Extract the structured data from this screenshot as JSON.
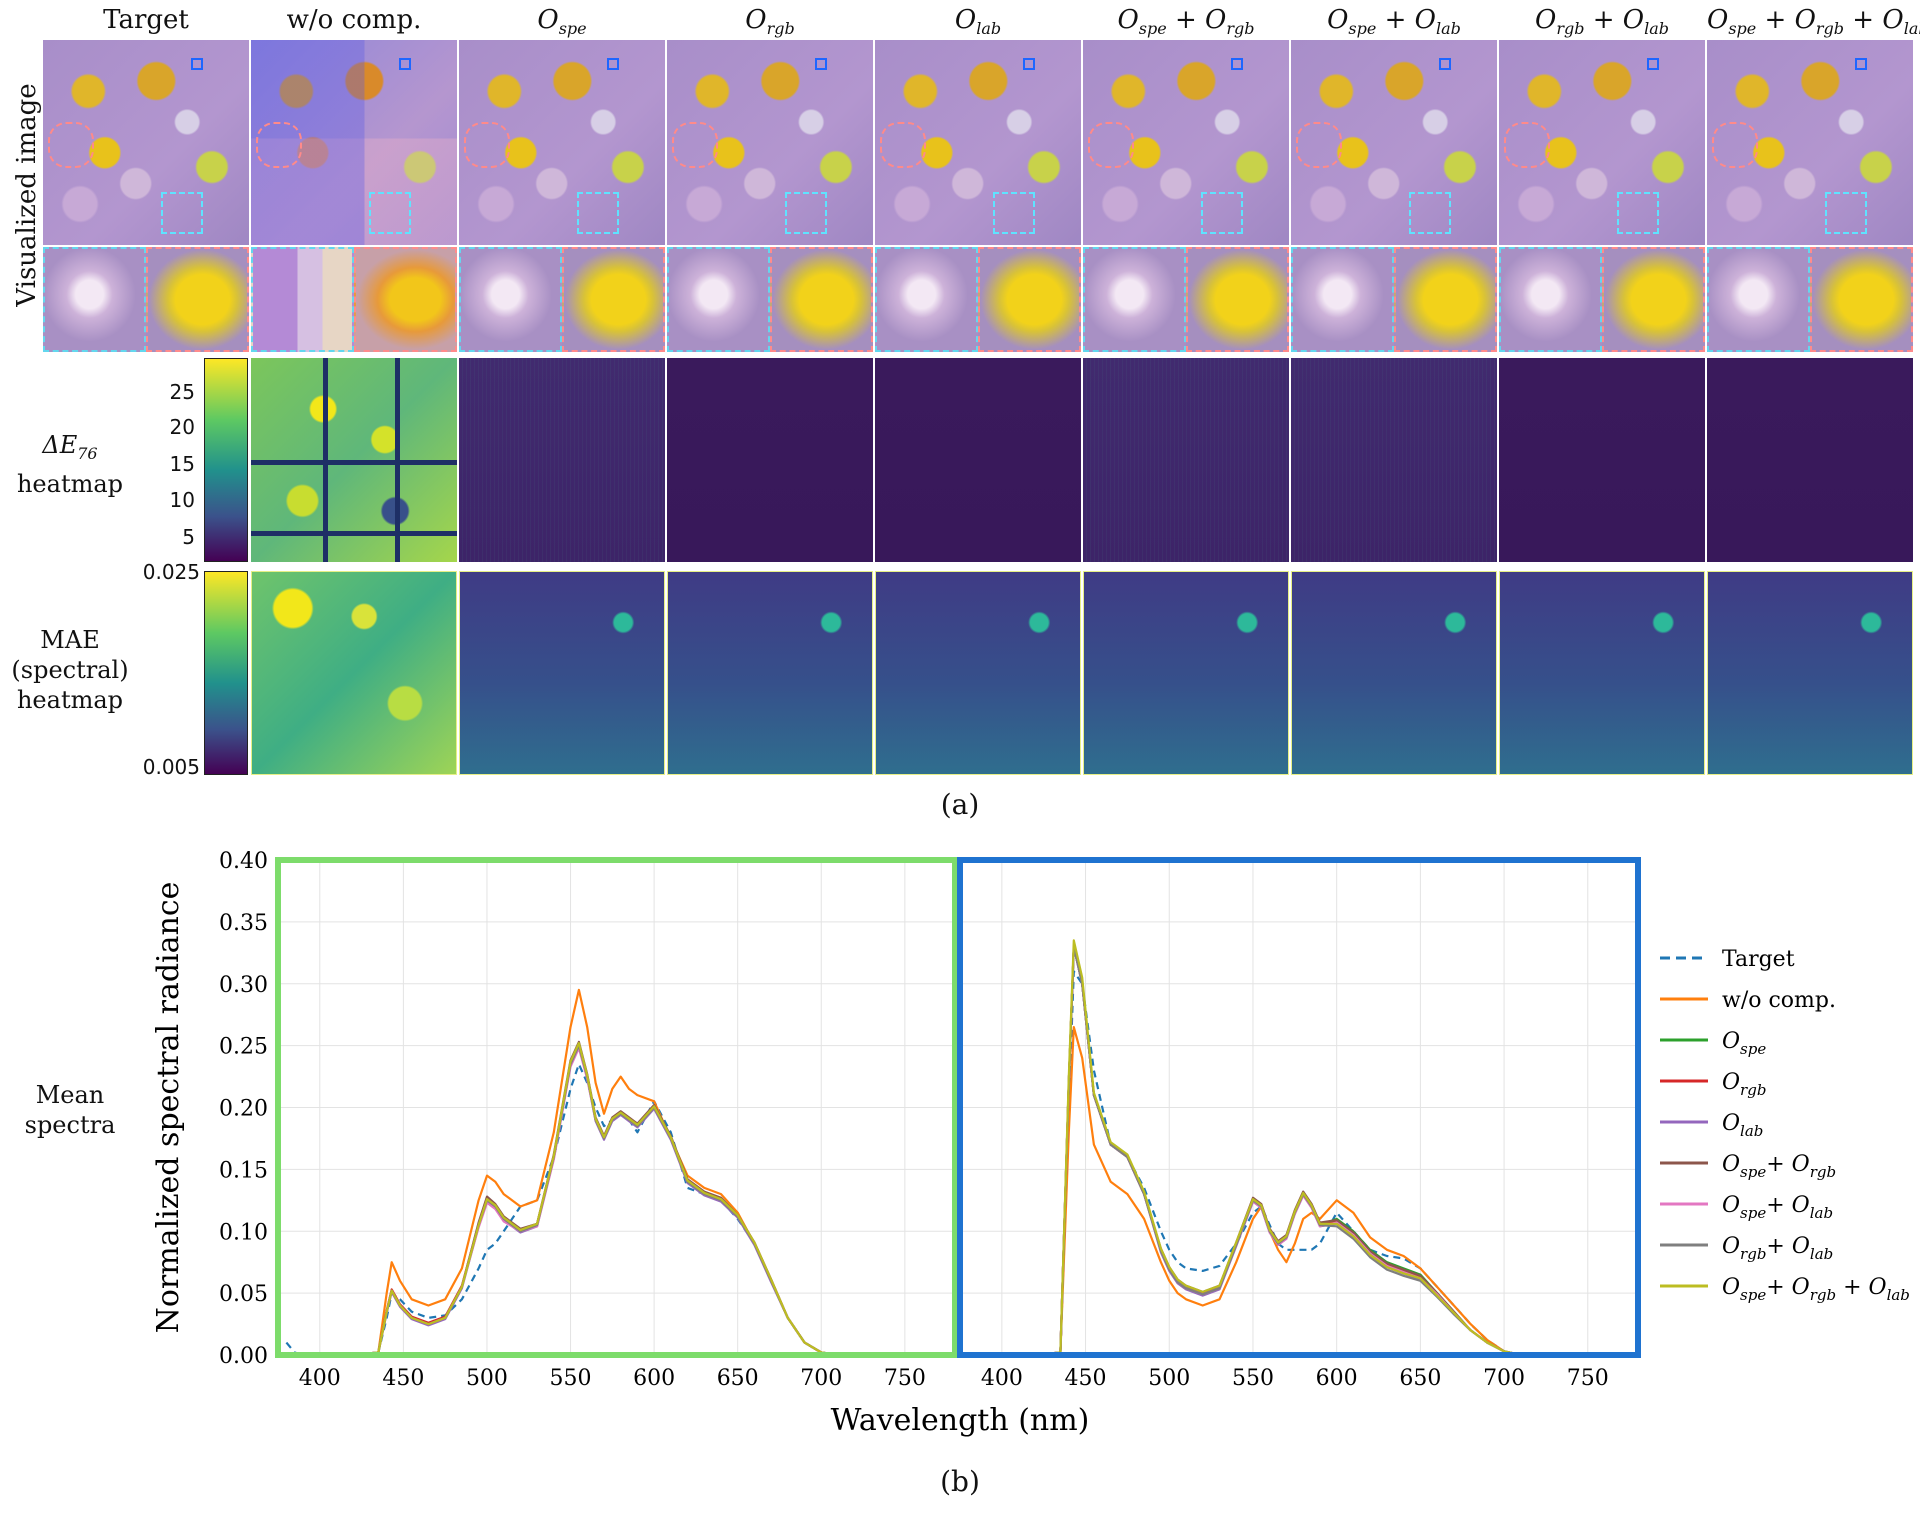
{
  "panel_a": {
    "columns": [
      {
        "main": "Target"
      },
      {
        "main": "w/o comp."
      },
      {
        "main": "O",
        "sub": "spe"
      },
      {
        "main": "O",
        "sub": "rgb"
      },
      {
        "main": "O",
        "sub": "lab"
      },
      {
        "main": "O",
        "sub": "spe",
        "plus": "+ O",
        "sub2": "rgb"
      },
      {
        "main": "O",
        "sub": "spe",
        "plus": "+ O",
        "sub2": "lab"
      },
      {
        "main": "O",
        "sub": "rgb",
        "plus": "+ O",
        "sub2": "lab"
      },
      {
        "main": "O",
        "sub": "spe",
        "plus": "+ O",
        "sub2": "rgb",
        "plus2": "+ O",
        "sub3": "lab"
      }
    ],
    "row_labels": {
      "visualized": "Visualized image",
      "de76_l1": "ΔE",
      "de76_sub": "76",
      "de76_l2": "heatmap",
      "mae_l1": "MAE",
      "mae_l2": "(spectral)",
      "mae_l3": "heatmap",
      "spectra_l1": "Mean",
      "spectra_l2": "spectra"
    },
    "de_colorbar_ticks": [
      "25",
      "20",
      "15",
      "10",
      "5"
    ],
    "mae_colorbar_ticks": [
      "0.025",
      "0.005"
    ],
    "colormap": [
      "#fde725",
      "#5ec962",
      "#21918c",
      "#3b528b",
      "#440154"
    ],
    "caption": "(a)"
  },
  "panel_b": {
    "caption": "(b)"
  },
  "chart_data": {
    "type": "line",
    "ylabel": "Normalized spectral radiance",
    "xlabel": "Wavelength (nm)",
    "ylim": [
      0,
      0.4
    ],
    "xlim": [
      375,
      780
    ],
    "yticks": [
      "0.00",
      "0.05",
      "0.10",
      "0.15",
      "0.20",
      "0.25",
      "0.30",
      "0.35",
      "0.40"
    ],
    "xticks": [
      "400",
      "450",
      "500",
      "550",
      "600",
      "650",
      "700",
      "750"
    ],
    "grid": true,
    "legend_position": "right",
    "subplot_frames": [
      {
        "region": "green",
        "color": "#7ddc6b"
      },
      {
        "region": "blue",
        "color": "#1f73d0"
      }
    ],
    "series_names": [
      {
        "name": "Target",
        "color": "#1f77b4",
        "dash": true
      },
      {
        "name": "w/o comp.",
        "color": "#ff7f0e"
      },
      {
        "name": "O",
        "sub": "spe",
        "color": "#2ca02c"
      },
      {
        "name": "O",
        "sub": "rgb",
        "color": "#d62728"
      },
      {
        "name": "O",
        "sub": "lab",
        "color": "#9467bd"
      },
      {
        "name": "O",
        "sub": "spe",
        "plus": "+ O",
        "sub2": "rgb",
        "color": "#8c564b"
      },
      {
        "name": "O",
        "sub": "spe",
        "plus": "+ O",
        "sub2": "lab",
        "color": "#e377c2"
      },
      {
        "name": "O",
        "sub": "rgb",
        "plus": "+ O",
        "sub2": "lab",
        "color": "#7f7f7f"
      },
      {
        "name": "O",
        "sub": "spe",
        "plus": "+ O",
        "sub2": "rgb",
        "plus2": "+ O",
        "sub3": "lab",
        "color": "#bcbd22"
      }
    ],
    "x": [
      380,
      385,
      390,
      400,
      420,
      435,
      440,
      443,
      448,
      455,
      465,
      475,
      485,
      495,
      500,
      505,
      510,
      520,
      530,
      540,
      550,
      555,
      560,
      565,
      570,
      575,
      580,
      585,
      590,
      600,
      610,
      620,
      630,
      640,
      650,
      660,
      670,
      680,
      690,
      700,
      710,
      730,
      780
    ],
    "green_region": [
      {
        "name": "Target",
        "values": [
          0.01,
          0.002,
          0,
          0,
          0,
          0.002,
          0.03,
          0.05,
          0.045,
          0.035,
          0.03,
          0.032,
          0.045,
          0.07,
          0.085,
          0.09,
          0.1,
          0.12,
          0.125,
          0.16,
          0.215,
          0.235,
          0.22,
          0.2,
          0.185,
          0.19,
          0.195,
          0.19,
          0.18,
          0.205,
          0.18,
          0.135,
          0.13,
          0.125,
          0.11,
          0.09,
          0.06,
          0.03,
          0.01,
          0.002,
          0,
          0,
          0
        ]
      },
      {
        "name": "w/o comp.",
        "values": [
          0,
          0,
          0,
          0,
          0,
          0.002,
          0.05,
          0.075,
          0.06,
          0.045,
          0.04,
          0.045,
          0.07,
          0.125,
          0.145,
          0.14,
          0.13,
          0.12,
          0.125,
          0.18,
          0.265,
          0.295,
          0.265,
          0.22,
          0.195,
          0.215,
          0.225,
          0.215,
          0.21,
          0.205,
          0.175,
          0.145,
          0.135,
          0.13,
          0.115,
          0.09,
          0.06,
          0.03,
          0.01,
          0.002,
          0,
          0,
          0
        ]
      },
      {
        "name": "O_spe",
        "values": [
          0,
          0,
          0,
          0,
          0,
          0.002,
          0.035,
          0.052,
          0.04,
          0.03,
          0.025,
          0.03,
          0.055,
          0.105,
          0.125,
          0.12,
          0.11,
          0.1,
          0.105,
          0.16,
          0.235,
          0.25,
          0.225,
          0.19,
          0.175,
          0.19,
          0.195,
          0.19,
          0.185,
          0.2,
          0.175,
          0.14,
          0.13,
          0.125,
          0.112,
          0.09,
          0.06,
          0.03,
          0.01,
          0.002,
          0,
          0,
          0
        ]
      },
      {
        "name": "O_rgb",
        "values": [
          0,
          0,
          0,
          0,
          0,
          0.002,
          0.036,
          0.053,
          0.041,
          0.031,
          0.026,
          0.031,
          0.056,
          0.106,
          0.126,
          0.121,
          0.111,
          0.101,
          0.106,
          0.161,
          0.236,
          0.251,
          0.226,
          0.191,
          0.176,
          0.191,
          0.196,
          0.191,
          0.186,
          0.201,
          0.176,
          0.141,
          0.131,
          0.126,
          0.113,
          0.091,
          0.061,
          0.03,
          0.01,
          0.002,
          0,
          0,
          0
        ]
      },
      {
        "name": "O_lab",
        "values": [
          0,
          0,
          0,
          0,
          0,
          0.002,
          0.034,
          0.051,
          0.039,
          0.029,
          0.024,
          0.029,
          0.054,
          0.104,
          0.124,
          0.119,
          0.109,
          0.099,
          0.104,
          0.159,
          0.234,
          0.249,
          0.224,
          0.189,
          0.174,
          0.189,
          0.194,
          0.189,
          0.184,
          0.199,
          0.174,
          0.139,
          0.129,
          0.124,
          0.111,
          0.089,
          0.059,
          0.03,
          0.01,
          0.002,
          0,
          0,
          0
        ]
      },
      {
        "name": "O_spe+O_rgb",
        "values": [
          0,
          0,
          0,
          0,
          0,
          0.002,
          0.035,
          0.052,
          0.04,
          0.03,
          0.025,
          0.03,
          0.055,
          0.107,
          0.128,
          0.122,
          0.112,
          0.102,
          0.106,
          0.162,
          0.238,
          0.253,
          0.227,
          0.192,
          0.177,
          0.192,
          0.197,
          0.192,
          0.187,
          0.202,
          0.177,
          0.142,
          0.132,
          0.127,
          0.113,
          0.091,
          0.061,
          0.03,
          0.01,
          0.002,
          0,
          0,
          0
        ]
      },
      {
        "name": "O_spe+O_lab",
        "values": [
          0,
          0,
          0,
          0,
          0,
          0.002,
          0.035,
          0.052,
          0.04,
          0.03,
          0.025,
          0.03,
          0.055,
          0.103,
          0.123,
          0.118,
          0.108,
          0.1,
          0.104,
          0.158,
          0.233,
          0.248,
          0.223,
          0.19,
          0.175,
          0.19,
          0.195,
          0.19,
          0.185,
          0.2,
          0.175,
          0.14,
          0.13,
          0.125,
          0.112,
          0.09,
          0.06,
          0.03,
          0.01,
          0.002,
          0,
          0,
          0
        ]
      },
      {
        "name": "O_rgb+O_lab",
        "values": [
          0,
          0,
          0,
          0,
          0,
          0.002,
          0.035,
          0.052,
          0.04,
          0.03,
          0.025,
          0.03,
          0.055,
          0.105,
          0.125,
          0.12,
          0.11,
          0.1,
          0.105,
          0.16,
          0.235,
          0.25,
          0.225,
          0.19,
          0.175,
          0.19,
          0.195,
          0.19,
          0.185,
          0.2,
          0.175,
          0.14,
          0.13,
          0.125,
          0.112,
          0.09,
          0.06,
          0.03,
          0.01,
          0.002,
          0,
          0,
          0
        ]
      },
      {
        "name": "O_spe+O_rgb+O_lab",
        "values": [
          0,
          0,
          0,
          0,
          0,
          0.002,
          0.035,
          0.052,
          0.04,
          0.03,
          0.025,
          0.03,
          0.055,
          0.105,
          0.126,
          0.121,
          0.111,
          0.101,
          0.106,
          0.161,
          0.237,
          0.252,
          0.226,
          0.191,
          0.176,
          0.191,
          0.196,
          0.191,
          0.186,
          0.201,
          0.176,
          0.141,
          0.131,
          0.126,
          0.113,
          0.091,
          0.061,
          0.03,
          0.01,
          0.002,
          0,
          0,
          0
        ]
      }
    ],
    "blue_region": [
      {
        "name": "Target",
        "values": [
          0,
          0,
          0,
          0,
          0,
          0.002,
          0.2,
          0.31,
          0.3,
          0.23,
          0.17,
          0.16,
          0.135,
          0.1,
          0.085,
          0.075,
          0.07,
          0.068,
          0.072,
          0.09,
          0.115,
          0.12,
          0.105,
          0.09,
          0.085,
          0.085,
          0.085,
          0.085,
          0.09,
          0.115,
          0.1,
          0.085,
          0.08,
          0.078,
          0.07,
          0.055,
          0.04,
          0.025,
          0.012,
          0.003,
          0,
          0,
          0
        ]
      },
      {
        "name": "w/o comp.",
        "values": [
          0,
          0,
          0,
          0,
          0,
          0.002,
          0.18,
          0.265,
          0.24,
          0.17,
          0.14,
          0.13,
          0.11,
          0.075,
          0.06,
          0.05,
          0.045,
          0.04,
          0.045,
          0.075,
          0.11,
          0.12,
          0.1,
          0.085,
          0.075,
          0.09,
          0.11,
          0.115,
          0.11,
          0.125,
          0.115,
          0.095,
          0.085,
          0.08,
          0.07,
          0.055,
          0.04,
          0.025,
          0.012,
          0.003,
          0,
          0,
          0
        ]
      },
      {
        "name": "O_spe",
        "values": [
          0,
          0,
          0,
          0,
          0,
          0.002,
          0.22,
          0.33,
          0.3,
          0.21,
          0.17,
          0.16,
          0.13,
          0.085,
          0.07,
          0.06,
          0.055,
          0.05,
          0.055,
          0.09,
          0.125,
          0.12,
          0.1,
          0.09,
          0.095,
          0.115,
          0.13,
          0.12,
          0.105,
          0.11,
          0.1,
          0.085,
          0.075,
          0.07,
          0.065,
          0.05,
          0.035,
          0.02,
          0.01,
          0.003,
          0,
          0,
          0
        ]
      },
      {
        "name": "O_rgb",
        "values": [
          0,
          0,
          0,
          0,
          0,
          0.002,
          0.22,
          0.33,
          0.3,
          0.21,
          0.17,
          0.16,
          0.13,
          0.085,
          0.07,
          0.06,
          0.055,
          0.05,
          0.055,
          0.09,
          0.126,
          0.121,
          0.101,
          0.091,
          0.096,
          0.116,
          0.131,
          0.121,
          0.106,
          0.108,
          0.098,
          0.083,
          0.073,
          0.068,
          0.063,
          0.049,
          0.034,
          0.02,
          0.01,
          0.003,
          0,
          0,
          0
        ]
      },
      {
        "name": "O_lab",
        "values": [
          0,
          0,
          0,
          0,
          0,
          0.002,
          0.22,
          0.33,
          0.3,
          0.21,
          0.17,
          0.16,
          0.13,
          0.083,
          0.068,
          0.058,
          0.053,
          0.048,
          0.053,
          0.088,
          0.124,
          0.119,
          0.099,
          0.089,
          0.094,
          0.114,
          0.129,
          0.119,
          0.104,
          0.106,
          0.096,
          0.081,
          0.071,
          0.066,
          0.061,
          0.048,
          0.033,
          0.02,
          0.01,
          0.003,
          0,
          0,
          0
        ]
      },
      {
        "name": "O_spe+O_rgb",
        "values": [
          0,
          0,
          0,
          0,
          0,
          0.002,
          0.22,
          0.33,
          0.3,
          0.21,
          0.17,
          0.16,
          0.13,
          0.086,
          0.071,
          0.061,
          0.056,
          0.051,
          0.056,
          0.091,
          0.127,
          0.122,
          0.102,
          0.092,
          0.097,
          0.117,
          0.132,
          0.122,
          0.107,
          0.109,
          0.099,
          0.084,
          0.074,
          0.069,
          0.064,
          0.05,
          0.035,
          0.02,
          0.01,
          0.003,
          0,
          0,
          0
        ]
      },
      {
        "name": "O_spe+O_lab",
        "values": [
          0,
          0,
          0,
          0,
          0,
          0.002,
          0.22,
          0.33,
          0.3,
          0.21,
          0.17,
          0.16,
          0.13,
          0.084,
          0.069,
          0.059,
          0.054,
          0.049,
          0.054,
          0.089,
          0.124,
          0.119,
          0.099,
          0.089,
          0.094,
          0.114,
          0.129,
          0.119,
          0.104,
          0.107,
          0.097,
          0.082,
          0.072,
          0.067,
          0.062,
          0.049,
          0.034,
          0.02,
          0.01,
          0.003,
          0,
          0,
          0
        ]
      },
      {
        "name": "O_rgb+O_lab",
        "values": [
          0,
          0,
          0,
          0,
          0,
          0.002,
          0.22,
          0.33,
          0.3,
          0.21,
          0.17,
          0.16,
          0.13,
          0.084,
          0.069,
          0.059,
          0.054,
          0.049,
          0.054,
          0.089,
          0.125,
          0.12,
          0.1,
          0.09,
          0.095,
          0.115,
          0.13,
          0.12,
          0.105,
          0.104,
          0.094,
          0.079,
          0.069,
          0.064,
          0.06,
          0.047,
          0.033,
          0.02,
          0.01,
          0.003,
          0,
          0,
          0
        ]
      },
      {
        "name": "O_spe+O_rgb+O_lab",
        "values": [
          0,
          0,
          0,
          0,
          0,
          0.002,
          0.225,
          0.335,
          0.305,
          0.212,
          0.172,
          0.162,
          0.132,
          0.086,
          0.071,
          0.061,
          0.056,
          0.051,
          0.056,
          0.091,
          0.126,
          0.121,
          0.101,
          0.091,
          0.096,
          0.116,
          0.131,
          0.121,
          0.106,
          0.106,
          0.096,
          0.081,
          0.071,
          0.066,
          0.062,
          0.048,
          0.034,
          0.02,
          0.01,
          0.003,
          0,
          0,
          0
        ]
      }
    ]
  }
}
